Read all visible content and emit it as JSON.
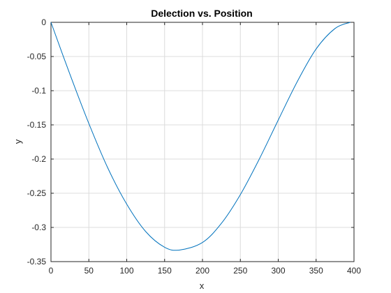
{
  "chart_data": {
    "type": "line",
    "title": "Delection vs. Position",
    "xlabel": "x",
    "ylabel": "y",
    "xlim": [
      0,
      400
    ],
    "ylim": [
      -0.35,
      0
    ],
    "xticks": [
      0,
      50,
      100,
      150,
      200,
      250,
      300,
      350,
      400
    ],
    "yticks": [
      0,
      -0.05,
      -0.1,
      -0.15,
      -0.2,
      -0.25,
      -0.3,
      -0.35
    ],
    "xtick_labels": [
      "0",
      "50",
      "100",
      "150",
      "200",
      "250",
      "300",
      "350",
      "400"
    ],
    "ytick_labels": [
      "0",
      "-0.05",
      "-0.1",
      "-0.15",
      "-0.2",
      "-0.25",
      "-0.3",
      "-0.35"
    ],
    "grid": true,
    "series": [
      {
        "color": "#0072BD",
        "x": [
          0,
          25,
          50,
          75,
          100,
          125,
          150,
          170,
          200,
          225,
          250,
          275,
          300,
          325,
          350,
          375,
          395
        ],
        "y": [
          0,
          -0.076,
          -0.148,
          -0.213,
          -0.266,
          -0.306,
          -0.329,
          -0.333,
          -0.322,
          -0.294,
          -0.252,
          -0.2,
          -0.143,
          -0.087,
          -0.039,
          -0.009,
          0
        ]
      }
    ]
  }
}
